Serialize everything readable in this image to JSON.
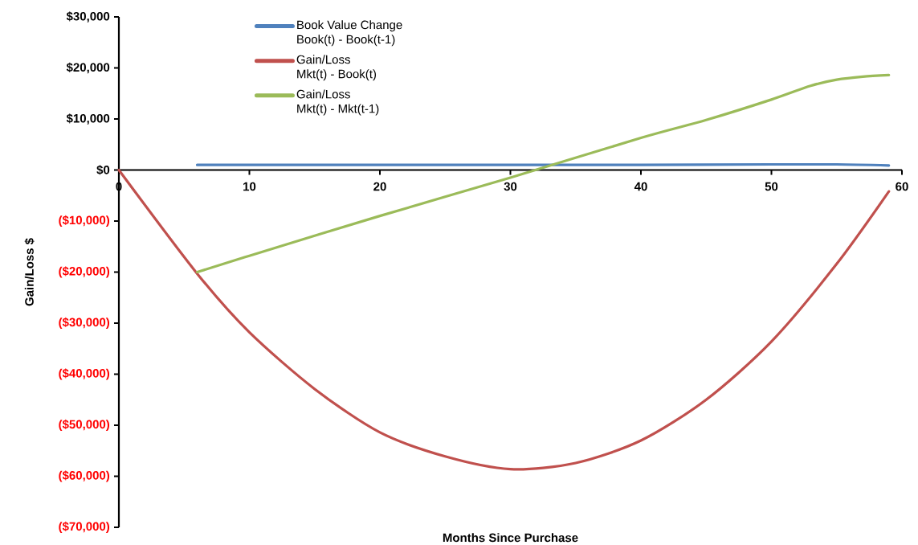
{
  "chart_data": {
    "type": "line",
    "xlabel": "Months Since Purchase",
    "ylabel": "Gain/Loss $",
    "xlim": [
      0,
      60
    ],
    "xticks": [
      0,
      10,
      20,
      30,
      40,
      50,
      60
    ],
    "ylim": [
      -70000,
      30000
    ],
    "yticks": [
      {
        "value": -70000,
        "label": "($70,000)"
      },
      {
        "value": -60000,
        "label": "($60,000)"
      },
      {
        "value": -50000,
        "label": "($50,000)"
      },
      {
        "value": -40000,
        "label": "($40,000)"
      },
      {
        "value": -30000,
        "label": "($30,000)"
      },
      {
        "value": -20000,
        "label": "($20,000)"
      },
      {
        "value": -10000,
        "label": "($10,000)"
      },
      {
        "value": 0,
        "label": "$0"
      },
      {
        "value": 10000,
        "label": "$10,000"
      },
      {
        "value": 20000,
        "label": "$20,000"
      },
      {
        "value": 30000,
        "label": "$30,000"
      }
    ],
    "grid": false,
    "legend": "top",
    "marker": "none",
    "line_style": "solid",
    "series": [
      {
        "name": "Book Value Change\nBook(t) - Book(t-1)",
        "color": "#4f81bd",
        "x": [
          6,
          10,
          20,
          30,
          40,
          50,
          55,
          59
        ],
        "values": [
          1000,
          1000,
          1000,
          1000,
          1000,
          1100,
          1100,
          900
        ]
      },
      {
        "name": "Gain/Loss\nMkt(t) - Book(t)",
        "color": "#c0504d",
        "x": [
          0,
          6,
          10,
          15,
          20,
          25,
          30,
          35,
          40,
          45,
          50,
          55,
          59
        ],
        "values": [
          0,
          -20300,
          -31800,
          -42900,
          -51400,
          -56100,
          -58600,
          -57400,
          -53000,
          -45000,
          -33600,
          -18400,
          -4200
        ]
      },
      {
        "name": "Gain/Loss\nMkt(t) - Mkt(t-1)",
        "color": "#9bbb59",
        "x": [
          6,
          10,
          20,
          30,
          40,
          45,
          50,
          53,
          55,
          57,
          59
        ],
        "values": [
          -20000,
          -16800,
          -9000,
          -1500,
          6300,
          9800,
          13800,
          16500,
          17700,
          18300,
          18600
        ]
      }
    ]
  }
}
